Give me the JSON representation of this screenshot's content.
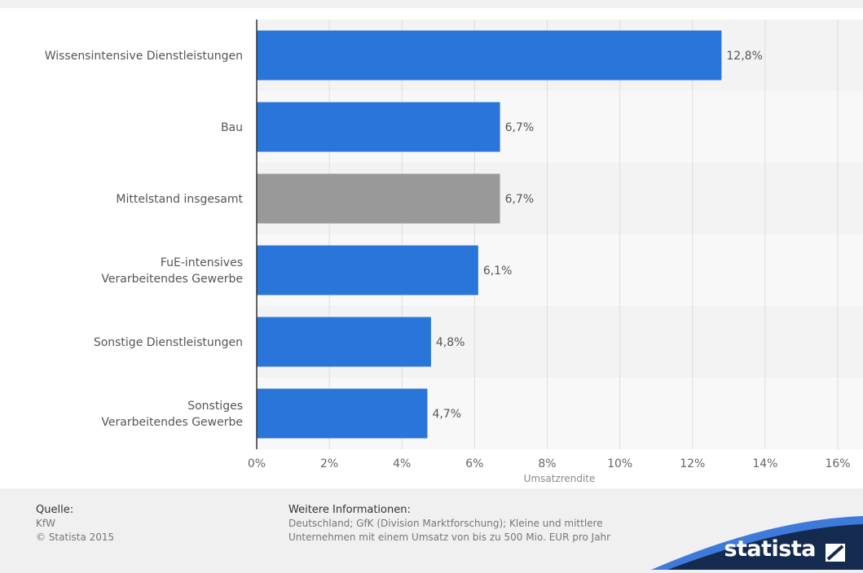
{
  "chart_data": {
    "type": "bar",
    "orientation": "horizontal",
    "categories": [
      [
        "Wissensintensive Dienstleistungen"
      ],
      [
        "Bau"
      ],
      [
        "Mittelstand insgesamt"
      ],
      [
        "FuE-intensives",
        "Verarbeitendes Gewerbe"
      ],
      [
        "Sonstige Dienstleistungen"
      ],
      [
        "Sonstiges",
        "Verarbeitendes Gewerbe"
      ]
    ],
    "values": [
      12.8,
      6.7,
      6.7,
      6.1,
      4.8,
      4.7
    ],
    "value_labels": [
      "12,8%",
      "6,7%",
      "6,7%",
      "6,1%",
      "4,8%",
      "4,7%"
    ],
    "bar_colors": [
      "#2a75d9",
      "#2a75d9",
      "#999999",
      "#2a75d9",
      "#2a75d9",
      "#2a75d9"
    ],
    "xlabel": "Umsatzrendite",
    "xlim": [
      0,
      16
    ],
    "xticks": [
      0,
      2,
      4,
      6,
      8,
      10,
      12,
      14,
      16
    ],
    "xtick_labels": [
      "0%",
      "2%",
      "4%",
      "6%",
      "8%",
      "10%",
      "12%",
      "14%",
      "16%"
    ],
    "grid": "vertical"
  },
  "footer": {
    "source_heading": "Quelle:",
    "source_lines": [
      "KfW",
      "© Statista 2015"
    ],
    "info_heading": "Weitere Informationen:",
    "info_lines": [
      "Deutschland; GfK (Division Marktforschung); Kleine und mittlere",
      "Unternehmen mit einem Umsatz von bis zu 500 Mio. EUR pro Jahr"
    ]
  },
  "brand": {
    "name": "statista",
    "colors": {
      "dark": "#142a4f",
      "light": "#3e7ad9"
    }
  },
  "colors": {
    "bar_primary": "#2a75d9",
    "bar_highlight": "#999999",
    "band_light": "#f8f8f8",
    "band_dark": "#f3f3f3"
  }
}
